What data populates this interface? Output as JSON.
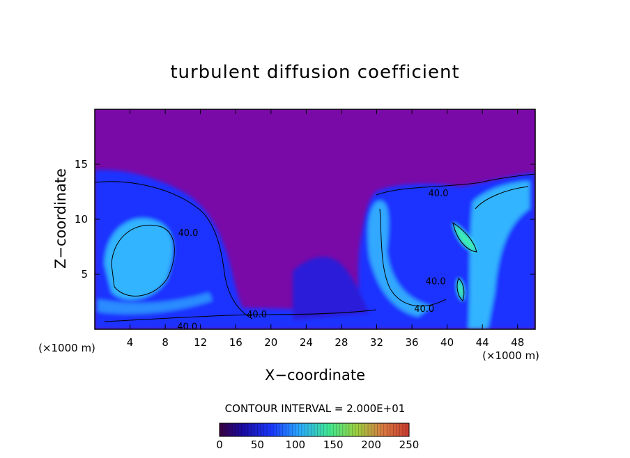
{
  "chart_data": {
    "type": "heatmap",
    "title": "turbulent diffusion coefficient",
    "xlabel": "X−coordinate",
    "ylabel": "Z−coordinate",
    "x_unit_left": "(×1000 m)",
    "x_unit_right": "(×1000 m)",
    "xlim": [
      0,
      50
    ],
    "ylim": [
      0,
      20
    ],
    "x_ticks": [
      4,
      8,
      12,
      16,
      20,
      24,
      28,
      32,
      36,
      40,
      44,
      48
    ],
    "y_ticks": [
      5,
      10,
      15
    ],
    "x_tick_labels": [
      "4",
      "8",
      "12",
      "16",
      "20",
      "24",
      "28",
      "32",
      "36",
      "40",
      "44",
      "48"
    ],
    "y_tick_labels": [
      "5",
      "10",
      "15"
    ],
    "contour_interval_text": "CONTOUR INTERVAL = 2.000E+01",
    "contour_interval": 20,
    "colorbar": {
      "min": 0,
      "max": 250,
      "ticks": [
        0,
        50,
        100,
        150,
        200,
        250
      ],
      "tick_labels": [
        "0",
        "50",
        "100",
        "150",
        "200",
        "250"
      ]
    },
    "contour_labels": [
      {
        "text": "40.0",
        "x": 39,
        "y": 12.4
      },
      {
        "text": "40.0",
        "x": 10.6,
        "y": 8.8
      },
      {
        "text": "40.0",
        "x": 38.7,
        "y": 4.4
      },
      {
        "text": "40.0",
        "x": 37.4,
        "y": 1.9
      },
      {
        "text": "40.0",
        "x": 18.4,
        "y": 1.4
      },
      {
        "text": "40.0",
        "x": 10.5,
        "y": 0.3
      }
    ],
    "colors": {
      "background_field": "#7a0aa8",
      "low_field": "#1c30ff",
      "mid_field": "#33b4ff",
      "high_field": "#3cf0b0"
    }
  }
}
